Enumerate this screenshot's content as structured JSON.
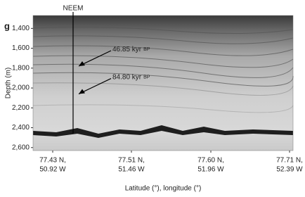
{
  "chart_data": {
    "type": "radargram",
    "panel_label": "g",
    "site_label": "NEEM",
    "ylabel": "Depth (m)",
    "xlabel": "Latitude (°), longitude (°)",
    "ylim": [
      1270,
      2630
    ],
    "y_inverted": true,
    "yticks": [
      {
        "value": 1400,
        "label": "1,400"
      },
      {
        "value": 1600,
        "label": "1,600"
      },
      {
        "value": 1800,
        "label": "1,800"
      },
      {
        "value": 2000,
        "label": "2,000"
      },
      {
        "value": 2200,
        "label": "2,200"
      },
      {
        "value": 2400,
        "label": "2,400"
      },
      {
        "value": 2600,
        "label": "2,600"
      }
    ],
    "categories": [
      {
        "lat": "77.43 N,",
        "lon": "50.92 W"
      },
      {
        "lat": "77.51 N,",
        "lon": "51.46 W"
      },
      {
        "lat": "77.60 N,",
        "lon": "51.96 W"
      },
      {
        "lat": "77.71 N,",
        "lon": "52.39 W"
      }
    ],
    "annotations": [
      {
        "text": "46.85 kyr",
        "suffix": "BP",
        "depth": 1780
      },
      {
        "text": "84.80 kyr",
        "suffix": "BP",
        "depth": 2060
      }
    ]
  }
}
